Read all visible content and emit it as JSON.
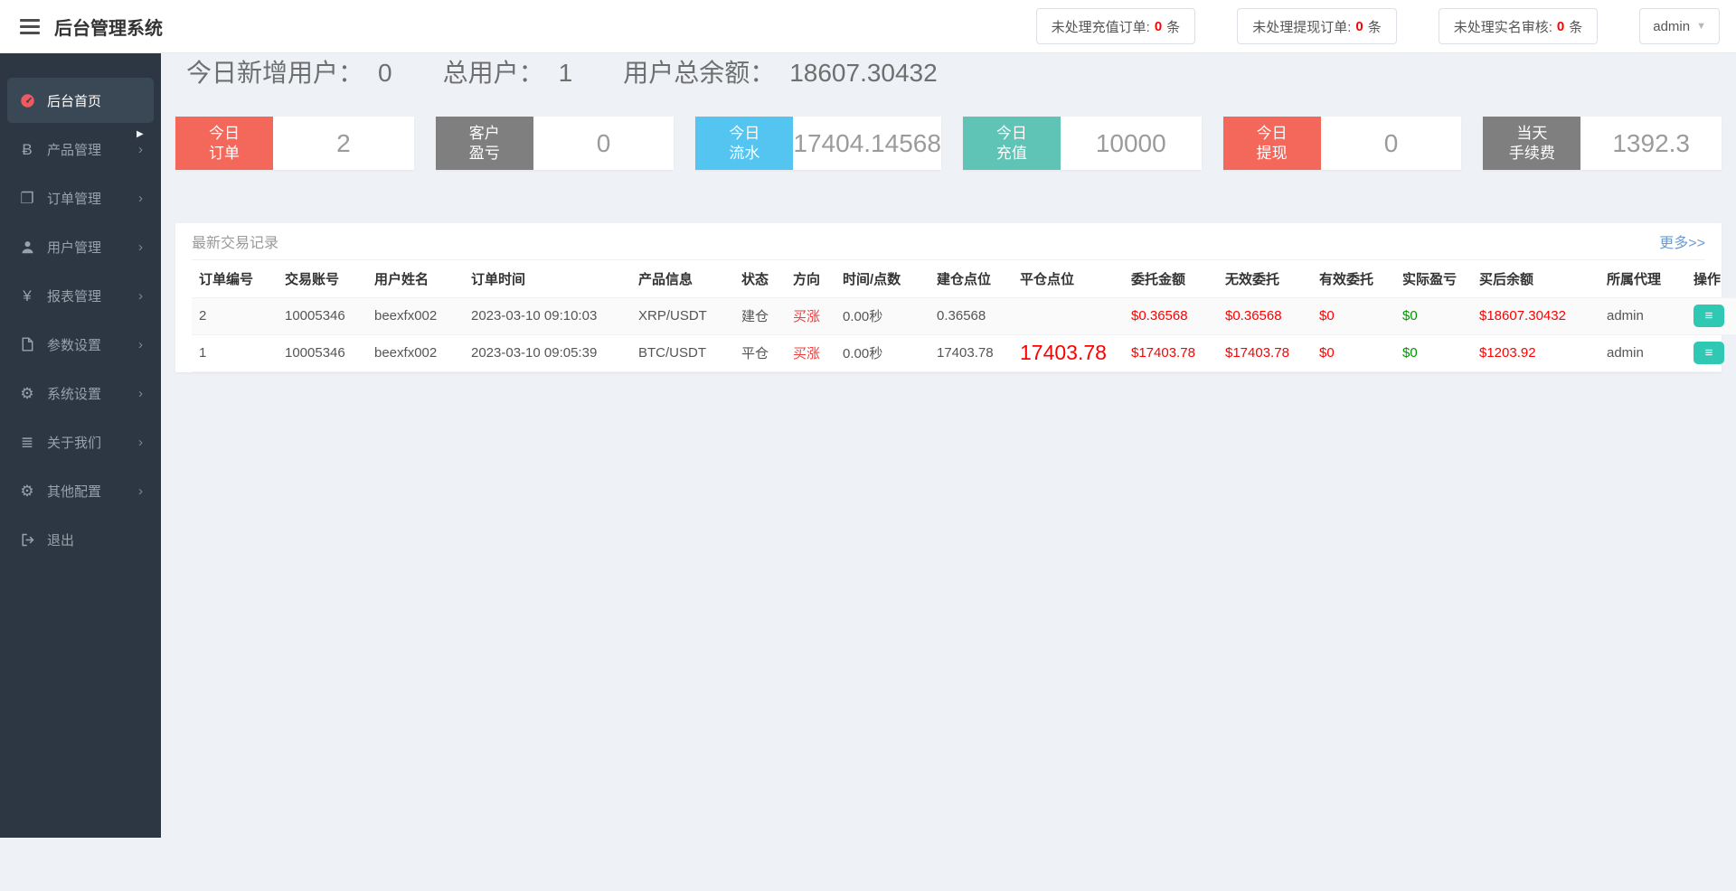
{
  "header": {
    "title": "后台管理系统",
    "badges": [
      {
        "label": "未处理充值订单:",
        "count": "0",
        "unit": "条"
      },
      {
        "label": "未处理提现订单:",
        "count": "0",
        "unit": "条"
      },
      {
        "label": "未处理实名审核:",
        "count": "0",
        "unit": "条"
      }
    ],
    "user": "admin"
  },
  "sidebar": {
    "items": [
      {
        "label": "后台首页",
        "icon": "dashboard-icon",
        "active": true,
        "arrow": false
      },
      {
        "label": "产品管理",
        "icon": "bitcoin-icon",
        "active": false,
        "arrow": true
      },
      {
        "label": "订单管理",
        "icon": "orders-icon",
        "active": false,
        "arrow": true
      },
      {
        "label": "用户管理",
        "icon": "user-icon",
        "active": false,
        "arrow": true
      },
      {
        "label": "报表管理",
        "icon": "yen-icon",
        "active": false,
        "arrow": true
      },
      {
        "label": "参数设置",
        "icon": "file-icon",
        "active": false,
        "arrow": true
      },
      {
        "label": "系统设置",
        "icon": "cogs-icon",
        "active": false,
        "arrow": true
      },
      {
        "label": "关于我们",
        "icon": "list-icon",
        "active": false,
        "arrow": true
      },
      {
        "label": "其他配置",
        "icon": "gear-icon",
        "active": false,
        "arrow": true
      },
      {
        "label": "退出",
        "icon": "logout-icon",
        "active": false,
        "arrow": false
      }
    ]
  },
  "stats": {
    "new_users_label": "今日新增用户：",
    "new_users": "0",
    "total_users_label": "总用户：",
    "total_users": "1",
    "total_balance_label": "用户总余额：",
    "total_balance": "18607.30432"
  },
  "cards": [
    {
      "label_lines": [
        "今日",
        "订单"
      ],
      "value": "2",
      "color": "#f4685c"
    },
    {
      "label_lines": [
        "客户",
        "盈亏"
      ],
      "value": "0",
      "color": "#7f7f7f"
    },
    {
      "label_lines": [
        "今日",
        "流水"
      ],
      "value": "17404.14568",
      "color": "#54c5f0"
    },
    {
      "label_lines": [
        "今日",
        "充值"
      ],
      "value": "10000",
      "color": "#5fc3b5"
    },
    {
      "label_lines": [
        "今日",
        "提现"
      ],
      "value": "0",
      "color": "#f4685c"
    },
    {
      "label_lines": [
        "当天",
        "手续费"
      ],
      "value": "1392.3",
      "color": "#7f7f7f"
    }
  ],
  "panel": {
    "title": "最新交易记录",
    "more": "更多>>"
  },
  "table": {
    "columns": [
      "订单编号",
      "交易账号",
      "用户姓名",
      "订单时间",
      "产品信息",
      "状态",
      "方向",
      "时间/点数",
      "建仓点位",
      "平仓点位",
      "委托金额",
      "无效委托",
      "有效委托",
      "实际盈亏",
      "买后余额",
      "所属代理",
      "操作"
    ],
    "rows": [
      {
        "order_no": "2",
        "account": "10005346",
        "username": "beexfx002",
        "time": "2023-03-10 09:10:03",
        "product": "XRP/USDT",
        "status": "建仓",
        "direction": "买涨",
        "duration": "0.00秒",
        "open_point": "0.36568",
        "close_point": "",
        "amount": "$0.36568",
        "invalid": "$0.36568",
        "valid": "$0",
        "profit": "$0",
        "balance": "$18607.30432",
        "agent": "admin"
      },
      {
        "order_no": "1",
        "account": "10005346",
        "username": "beexfx002",
        "time": "2023-03-10 09:05:39",
        "product": "BTC/USDT",
        "status": "平仓",
        "direction": "买涨",
        "duration": "0.00秒",
        "open_point": "17403.78",
        "close_point": "17403.78",
        "amount": "$17403.78",
        "invalid": "$17403.78",
        "valid": "$0",
        "profit": "$0",
        "balance": "$1203.92",
        "agent": "admin"
      }
    ]
  },
  "colors": {
    "money_red": "#fe0000",
    "profit_green": "#009600",
    "direction_red": "#f03e3e",
    "action_teal": "#2fc8b2",
    "sidebar_bg": "#2c3743",
    "sidebar_active_bg": "#3a4754"
  }
}
